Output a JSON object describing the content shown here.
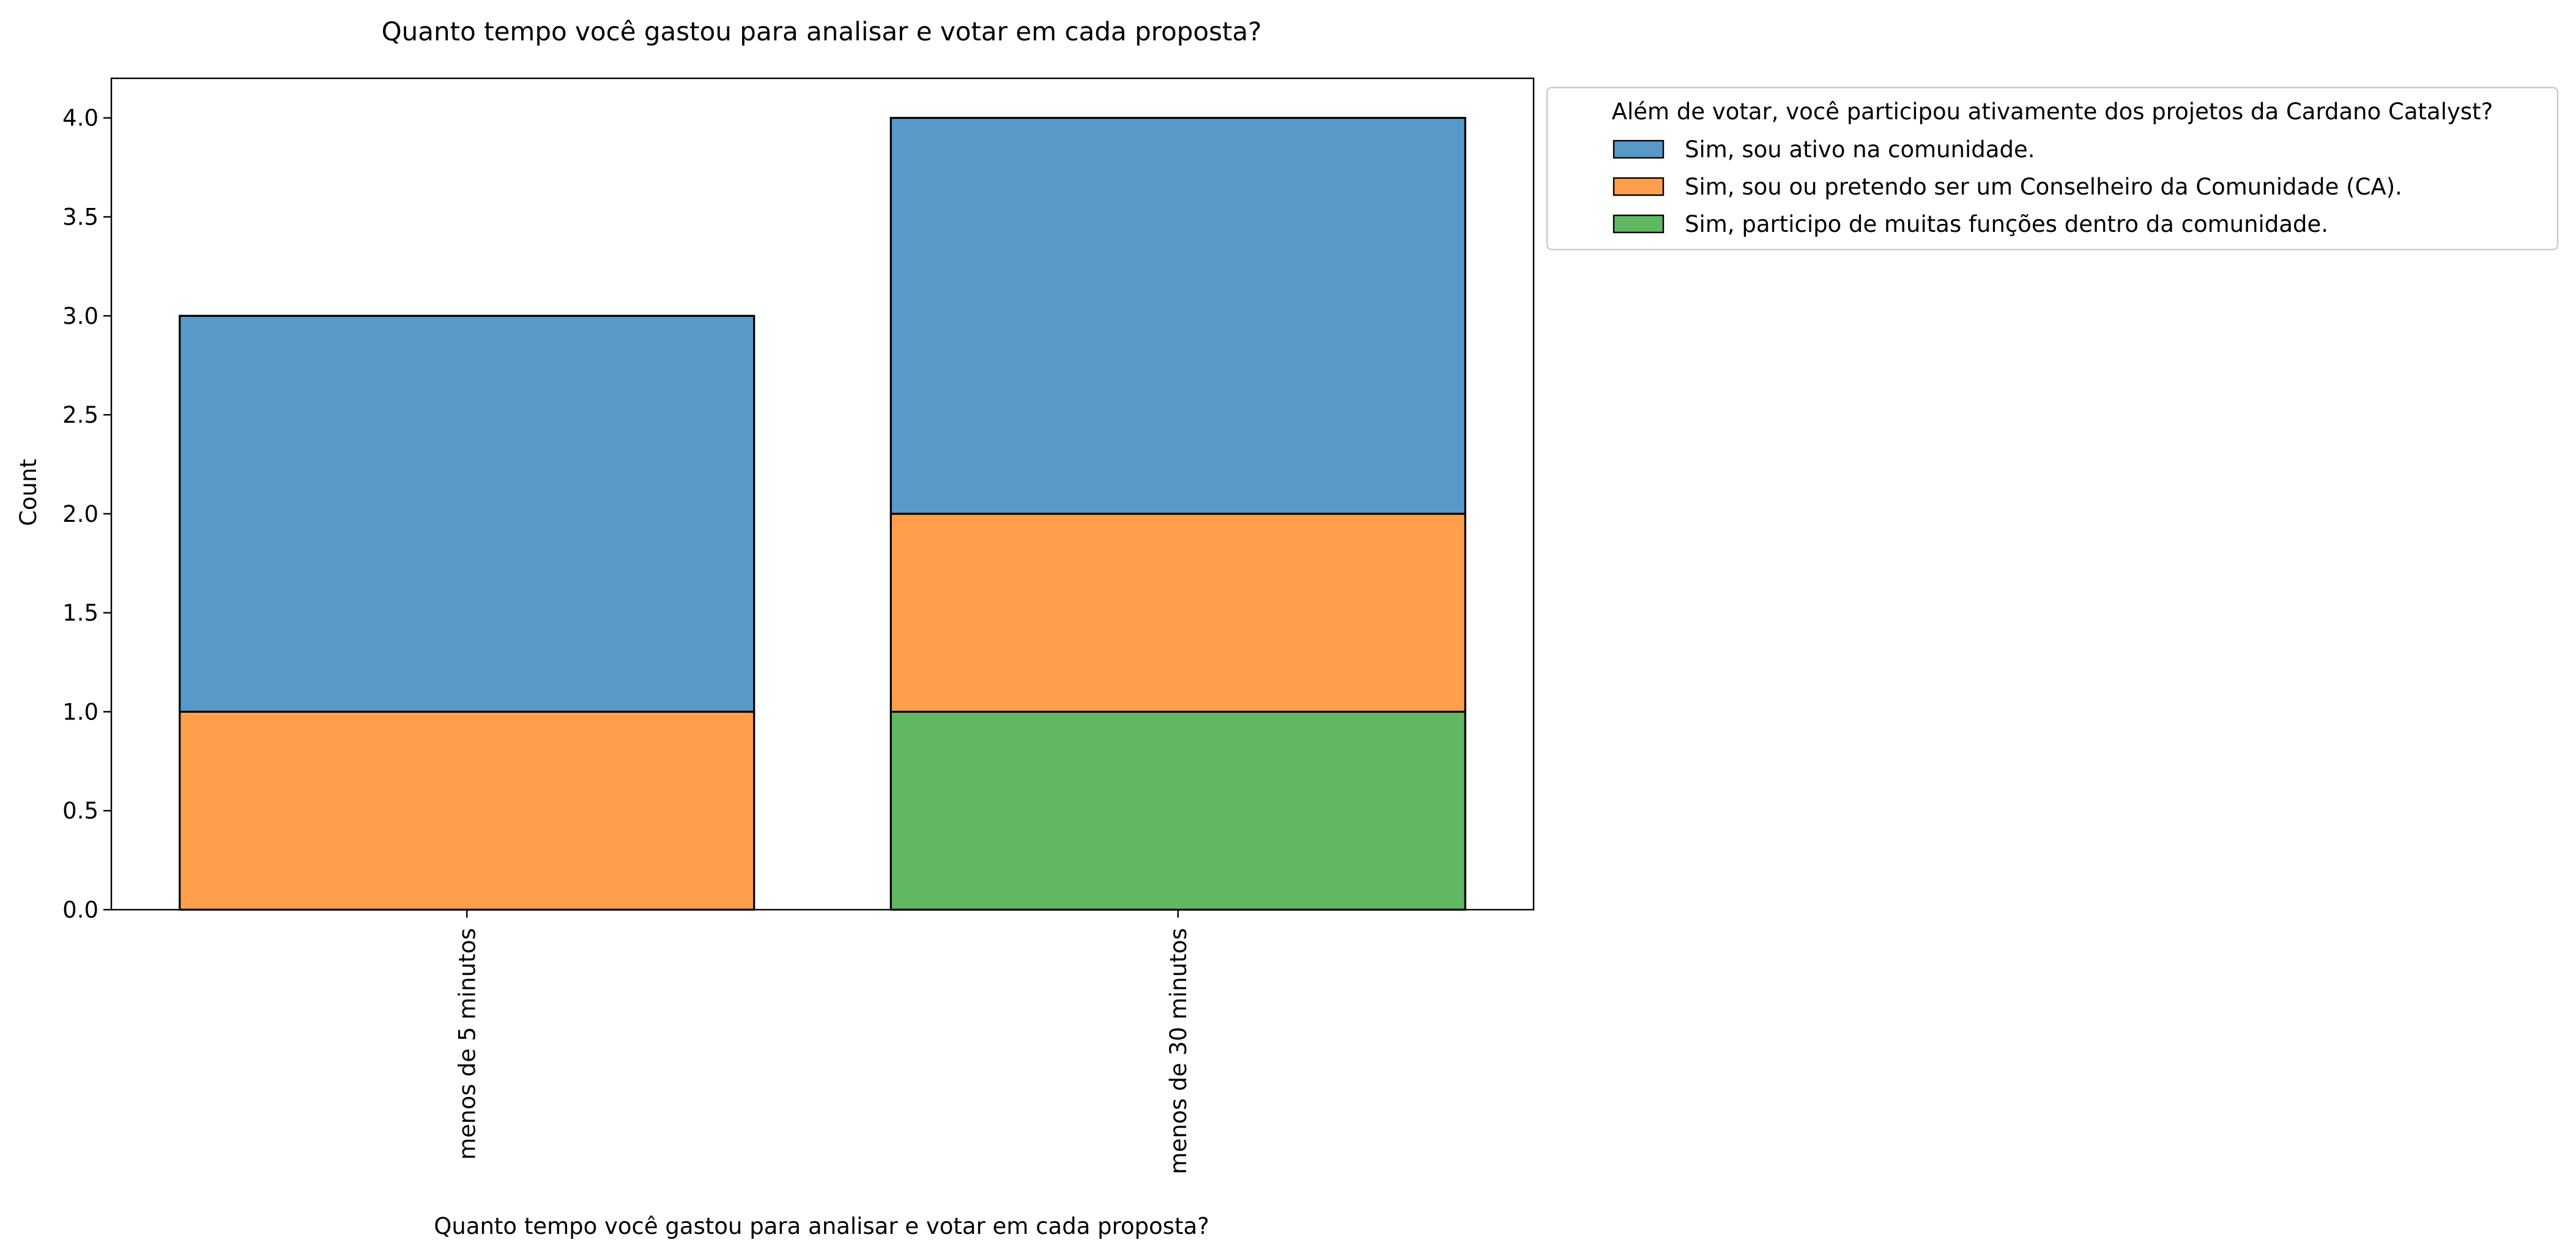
{
  "chart_data": {
    "type": "bar",
    "stacked": true,
    "title": "Quanto tempo você gastou para analisar e votar em cada proposta?",
    "xlabel": "Quanto tempo você gastou para analisar e votar em cada proposta?",
    "ylabel": "Count",
    "categories": [
      "menos de 5 minutos",
      "menos de 30 minutos"
    ],
    "ylim": [
      0,
      4.2
    ],
    "yticks": [
      0.0,
      0.5,
      1.0,
      1.5,
      2.0,
      2.5,
      3.0,
      3.5,
      4.0
    ],
    "ytick_labels": [
      "0.0",
      "0.5",
      "1.0",
      "1.5",
      "2.0",
      "2.5",
      "3.0",
      "3.5",
      "4.0"
    ],
    "legend": {
      "title": "Além de votar, você participou ativamente dos projetos da Cardano Catalyst?",
      "placement": "outside-right-top"
    },
    "grid": false,
    "series": [
      {
        "name": "Sim, sou ativo na comunidade.",
        "color": "#5799c7",
        "values": [
          2,
          2
        ]
      },
      {
        "name": "Sim, sou ou pretendo ser um Conselheiro da Comunidade (CA).",
        "color": "#ff9f4b",
        "values": [
          1,
          1
        ]
      },
      {
        "name": "Sim, participo de muitas funções dentro da comunidade.",
        "color": "#61b862",
        "values": [
          0,
          1
        ]
      }
    ]
  }
}
